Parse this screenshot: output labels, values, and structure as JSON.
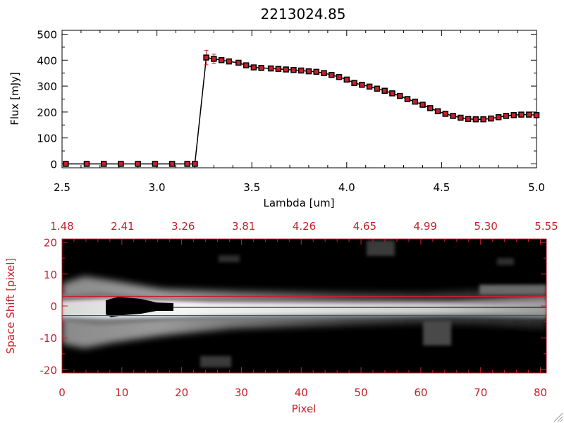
{
  "title": "2213024.85",
  "colors": {
    "top_axis": "#000000",
    "marker": "#c8202a",
    "line": "#000000",
    "bottom_axis": "#c8202a",
    "image_background": "#000000"
  },
  "chart_data": [
    {
      "type": "line",
      "title": "2213024.85",
      "xlabel": "Lambda [um]",
      "ylabel": "Flux [mJy]",
      "xlim": [
        2.5,
        5.0
      ],
      "ylim": [
        -15,
        515
      ],
      "x_ticks": [
        "2.5",
        "3.0",
        "3.5",
        "4.0",
        "4.5",
        "5.0"
      ],
      "y_ticks": [
        "0",
        "100",
        "200",
        "300",
        "400",
        "500"
      ],
      "grid": false,
      "series": [
        {
          "x": [
            2.52,
            2.63,
            2.72,
            2.81,
            2.9,
            2.99,
            3.08,
            3.16,
            3.2,
            3.26,
            3.3,
            3.34,
            3.38,
            3.43,
            3.47,
            3.51,
            3.55,
            3.6,
            3.64,
            3.68,
            3.72,
            3.76,
            3.8,
            3.84,
            3.88,
            3.92,
            3.96,
            4.0,
            4.04,
            4.08,
            4.12,
            4.16,
            4.2,
            4.24,
            4.28,
            4.32,
            4.36,
            4.4,
            4.44,
            4.48,
            4.52,
            4.56,
            4.6,
            4.64,
            4.68,
            4.72,
            4.76,
            4.8,
            4.84,
            4.88,
            4.92,
            4.96,
            5.0
          ],
          "y": [
            0,
            0,
            0,
            0,
            0,
            0,
            0,
            0,
            0,
            410,
            405,
            400,
            395,
            390,
            380,
            372,
            370,
            368,
            366,
            364,
            362,
            360,
            357,
            355,
            350,
            343,
            335,
            325,
            312,
            305,
            298,
            290,
            282,
            272,
            262,
            250,
            240,
            228,
            215,
            203,
            193,
            185,
            178,
            173,
            172,
            172,
            175,
            180,
            185,
            188,
            190,
            190,
            188
          ],
          "errors": [
            0,
            0,
            0,
            0,
            0,
            0,
            0,
            0,
            0,
            28,
            18,
            10,
            5,
            4,
            3,
            3,
            3,
            3,
            3,
            3,
            3,
            3,
            3,
            3,
            3,
            3,
            3,
            3,
            3,
            3,
            3,
            3,
            3,
            3,
            3,
            3,
            3,
            3,
            3,
            3,
            3,
            3,
            3,
            3,
            3,
            3,
            3,
            3,
            3,
            3,
            3,
            3,
            3
          ]
        }
      ]
    },
    {
      "type": "heatmap",
      "xlabel": "Pixel",
      "ylabel": "Space Shift [pixel]",
      "xlim": [
        0,
        81
      ],
      "ylim": [
        -21,
        21
      ],
      "x_ticks": [
        "0",
        "10",
        "20",
        "30",
        "40",
        "50",
        "60",
        "70",
        "80"
      ],
      "y_ticks": [
        "-20",
        "-10",
        "0",
        "10",
        "20"
      ],
      "top_ticks": [
        "1.48",
        "2.41",
        "3.26",
        "3.81",
        "4.26",
        "4.65",
        "4.99",
        "5.30",
        "5.55"
      ],
      "markers_y": [
        3,
        -3
      ]
    }
  ]
}
